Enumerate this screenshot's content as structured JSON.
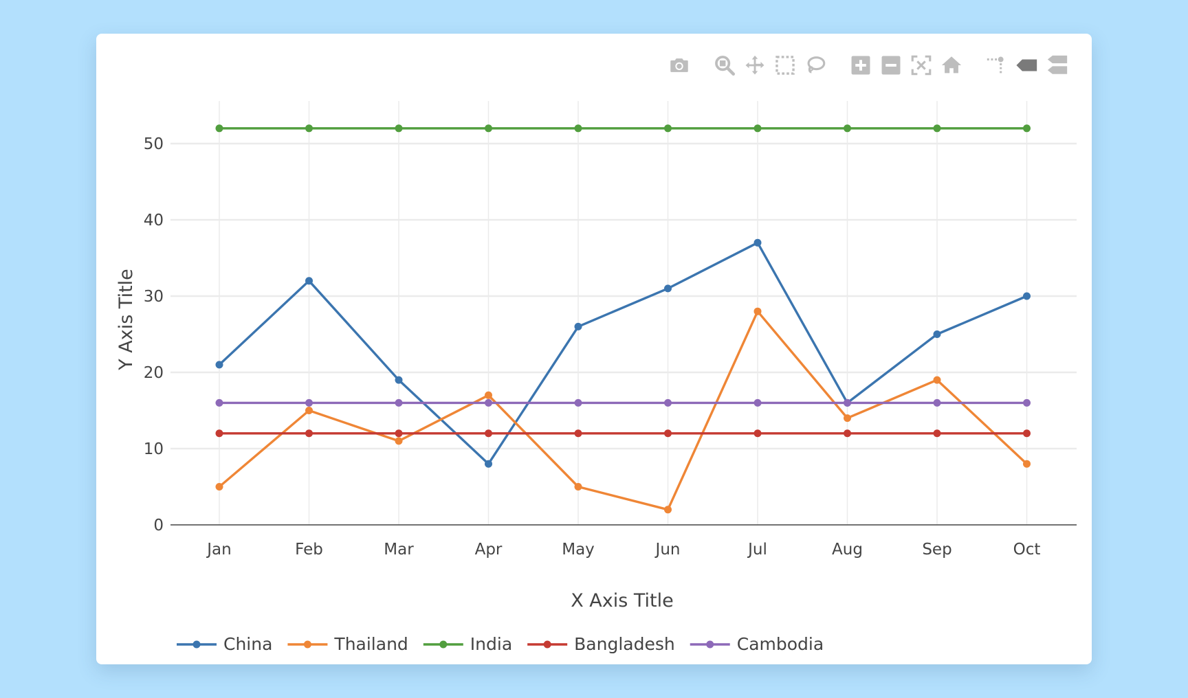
{
  "chart_data": {
    "type": "line",
    "categories": [
      "Jan",
      "Feb",
      "Mar",
      "Apr",
      "May",
      "Jun",
      "Jul",
      "Aug",
      "Sep",
      "Oct"
    ],
    "series": [
      {
        "name": "China",
        "color": "#3b75af",
        "values": [
          21,
          32,
          19,
          8,
          26,
          31,
          37,
          16,
          25,
          30
        ]
      },
      {
        "name": "Thailand",
        "color": "#ef8636",
        "values": [
          5,
          15,
          11,
          17,
          5,
          2,
          28,
          14,
          19,
          8
        ]
      },
      {
        "name": "India",
        "color": "#519e3e",
        "values": [
          52,
          52,
          52,
          52,
          52,
          52,
          52,
          52,
          52,
          52
        ]
      },
      {
        "name": "Bangladesh",
        "color": "#c53a32",
        "values": [
          12,
          12,
          12,
          12,
          12,
          12,
          12,
          12,
          12,
          12
        ]
      },
      {
        "name": "Cambodia",
        "color": "#8d69b8",
        "values": [
          16,
          16,
          16,
          16,
          16,
          16,
          16,
          16,
          16,
          16
        ]
      }
    ],
    "xlabel": "X Axis Title",
    "ylabel": "Y Axis Title",
    "ylim": [
      0,
      50
    ],
    "yticks": [
      0,
      10,
      20,
      30,
      40,
      50
    ],
    "grid": true,
    "legend": "bottom"
  },
  "modebar": {
    "icons": [
      "camera-icon",
      "zoom-icon",
      "pan-icon",
      "box-select-icon",
      "lasso-icon",
      "zoom-in-icon",
      "zoom-out-icon",
      "autoscale-icon",
      "home-icon",
      "spike-lines-icon",
      "hover-closest-icon",
      "hover-compare-icon"
    ]
  }
}
